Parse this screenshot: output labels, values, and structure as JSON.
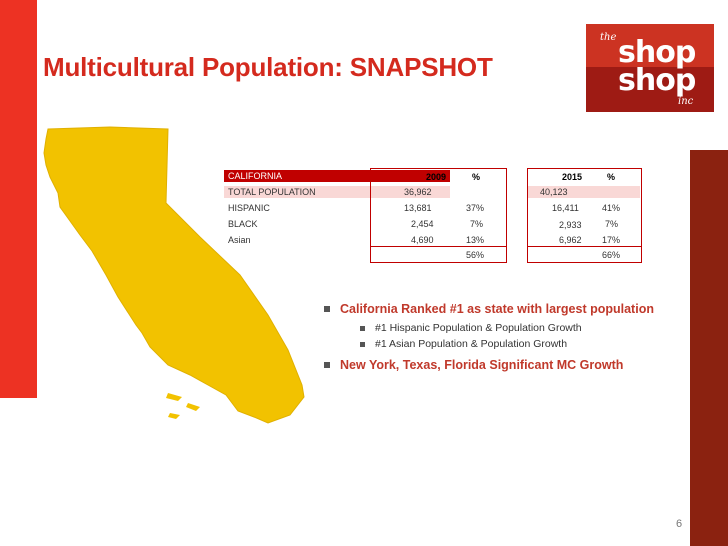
{
  "title": "Multicultural Population: SNAPSHOT",
  "logo": {
    "line1": "the",
    "line2": "shop",
    "line3": "shop",
    "line4": "inc"
  },
  "table": {
    "header": {
      "label": "CALIFORNIA",
      "y2009": "2009",
      "pct2009": "%",
      "y2015": "2015",
      "pct2015": "%"
    },
    "rows": [
      {
        "label": "TOTAL POPULATION",
        "v2009": "36,962",
        "p2009": "",
        "v2015": "40,123",
        "p2015": ""
      },
      {
        "label": "HISPANIC",
        "v2009": "13,681",
        "p2009": "37%",
        "v2015": "16,411",
        "p2015": "41%"
      },
      {
        "label": "BLACK",
        "v2009": "2,454",
        "p2009": "7%",
        "v2015": "2,933",
        "p2015": "7%"
      },
      {
        "label": "Asian",
        "v2009": "4,690",
        "p2009": "13%",
        "v2015": "6,962",
        "p2015": "17%"
      }
    ],
    "totals": {
      "p2009": "56%",
      "p2015": "66%"
    }
  },
  "bullets": [
    {
      "text": "California Ranked #1 as state with largest population",
      "sub": [
        "#1 Hispanic Population & Population Growth",
        "#1 Asian Population & Population Growth"
      ]
    },
    {
      "text": "New York, Texas, Florida Significant MC Growth",
      "sub": []
    }
  ],
  "page_number": "6",
  "colors": {
    "accent": "#d42a1e",
    "left_bar": "#ed3223",
    "right_bar": "#8b2210",
    "map": "#f2c200"
  }
}
